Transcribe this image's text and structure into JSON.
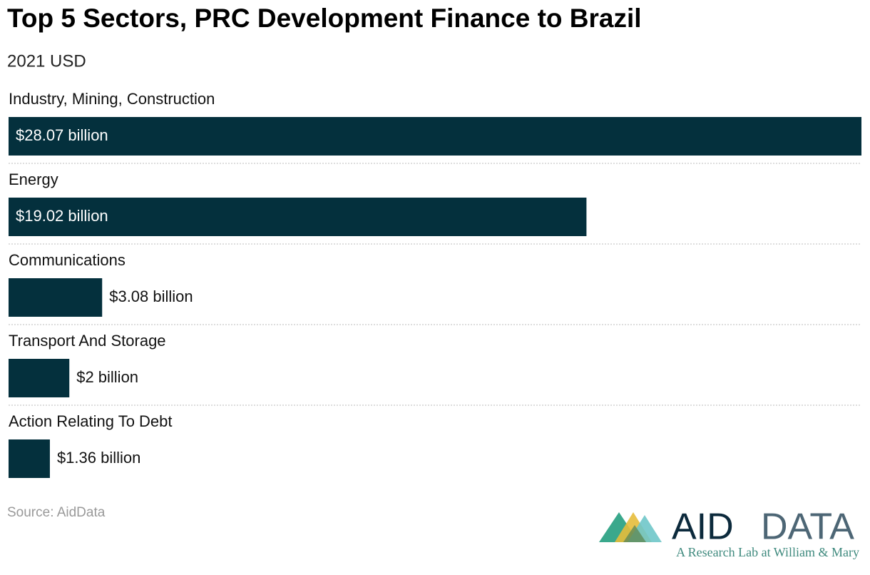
{
  "chart_data": {
    "type": "bar",
    "orientation": "horizontal",
    "title": "Top 5 Sectors, PRC Development Finance to Brazil",
    "subtitle": "2021 USD",
    "categories": [
      "Industry, Mining, Construction",
      "Energy",
      "Communications",
      "Transport And Storage",
      "Action Relating To Debt"
    ],
    "values": [
      28.07,
      19.02,
      3.08,
      2,
      1.36
    ],
    "value_labels": [
      "$28.07 billion",
      "$19.02 billion",
      "$3.08 billion",
      "$2 billion",
      "$1.36 billion"
    ],
    "color": "#04303d",
    "source": "Source: AidData"
  },
  "logo": {
    "name_part1": "AID",
    "name_part2": "DATA",
    "tagline": "A Research Lab at William & Mary"
  }
}
